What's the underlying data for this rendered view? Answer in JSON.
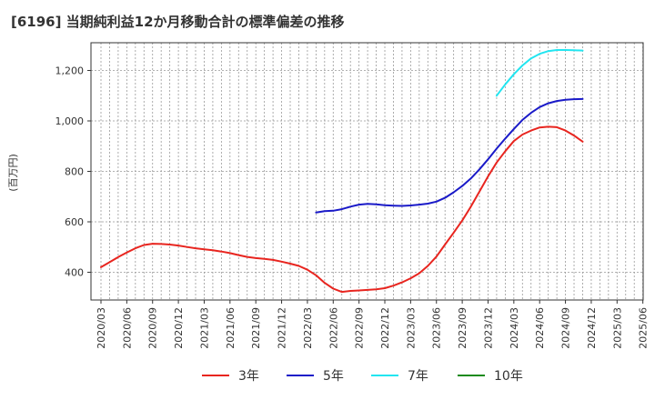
{
  "chart_data": {
    "type": "line",
    "title": "[6196]  当期純利益12か月移動合計の標準偏差の推移",
    "ylabel": "(百万円)",
    "xlabel": "",
    "ylim": [
      290,
      1310
    ],
    "yticks": [
      400,
      600,
      800,
      1000,
      1200
    ],
    "ytick_labels": [
      "400",
      "600",
      "800",
      "1,000",
      "1,200"
    ],
    "x_tick_labels": [
      "2020/03",
      "2020/06",
      "2020/09",
      "2020/12",
      "2021/03",
      "2021/06",
      "2021/09",
      "2021/12",
      "2022/03",
      "2022/06",
      "2022/09",
      "2022/12",
      "2023/03",
      "2023/06",
      "2023/09",
      "2023/12",
      "2024/03",
      "2024/06",
      "2024/09",
      "2024/12",
      "2025/03",
      "2025/06"
    ],
    "grid": true,
    "legend_position": "bottom",
    "series": [
      {
        "name": "3年",
        "color": "#e8251f",
        "values": [
          420,
          440,
          460,
          478,
          495,
          508,
          513,
          512,
          510,
          506,
          500,
          495,
          491,
          487,
          482,
          476,
          468,
          461,
          456,
          453,
          449,
          442,
          434,
          425,
          410,
          388,
          358,
          335,
          322,
          326,
          328,
          330,
          332,
          337,
          347,
          360,
          376,
          396,
          425,
          462,
          510,
          557,
          605,
          660,
          720,
          780,
          835,
          880,
          920,
          946,
          962,
          974,
          977,
          975,
          962,
          942,
          918
        ]
      },
      {
        "name": "5年",
        "color": "#1a1ac8",
        "values": [
          null,
          null,
          null,
          null,
          null,
          null,
          null,
          null,
          null,
          null,
          null,
          null,
          null,
          null,
          null,
          null,
          null,
          null,
          null,
          null,
          null,
          null,
          null,
          null,
          null,
          637,
          642,
          644,
          650,
          660,
          668,
          671,
          669,
          666,
          664,
          663,
          665,
          668,
          672,
          680,
          695,
          717,
          742,
          772,
          808,
          848,
          890,
          930,
          968,
          1004,
          1032,
          1055,
          1070,
          1079,
          1084,
          1086,
          1087
        ]
      },
      {
        "name": "7年",
        "color": "#22e5f0",
        "values": [
          null,
          null,
          null,
          null,
          null,
          null,
          null,
          null,
          null,
          null,
          null,
          null,
          null,
          null,
          null,
          null,
          null,
          null,
          null,
          null,
          null,
          null,
          null,
          null,
          null,
          null,
          null,
          null,
          null,
          null,
          null,
          null,
          null,
          null,
          null,
          null,
          null,
          null,
          null,
          null,
          null,
          null,
          null,
          null,
          null,
          null,
          1100,
          1145,
          1185,
          1220,
          1248,
          1266,
          1277,
          1281,
          1281,
          1280,
          1279
        ]
      },
      {
        "name": "10年",
        "color": "#1a8a1a",
        "values": []
      }
    ]
  }
}
